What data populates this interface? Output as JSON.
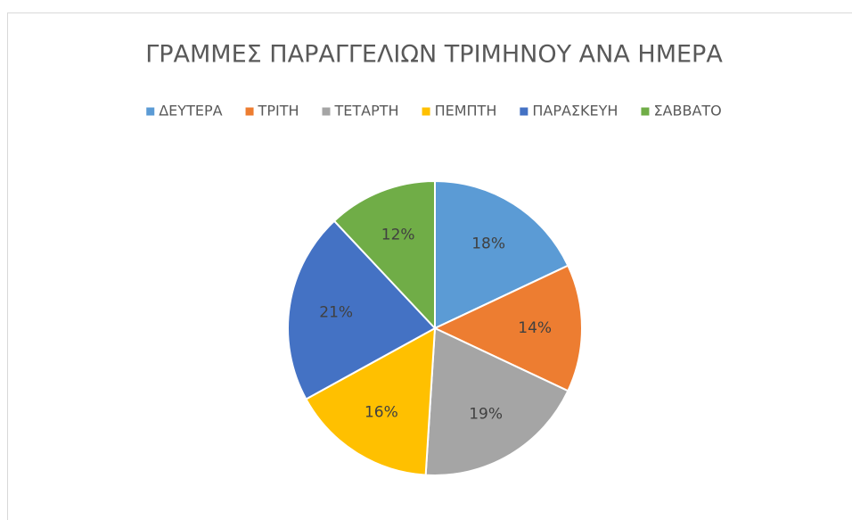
{
  "chart_data": {
    "type": "pie",
    "title": "ΓΡΑΜΜΕΣ ΠΑΡΑΓΓΕΛΙΩΝ ΤΡΙΜΗΝΟΥ ΑΝΑ ΗΜΕΡΑ",
    "categories": [
      "ΔΕΥΤΕΡΑ",
      "ΤΡΙΤΗ",
      "ΤΕΤΑΡΤΗ",
      "ΠΕΜΠΤΗ",
      "ΠΑΡΑΣΚΕΥΗ",
      "ΣΑΒΒΑΤΟ"
    ],
    "values": [
      18,
      14,
      19,
      16,
      21,
      12
    ],
    "value_labels": [
      "18%",
      "14%",
      "19%",
      "16%",
      "21%",
      "12%"
    ],
    "colors": [
      "#5b9bd5",
      "#ed7d31",
      "#a5a5a5",
      "#ffc000",
      "#4472c4",
      "#70ad47"
    ],
    "legend": "top"
  }
}
